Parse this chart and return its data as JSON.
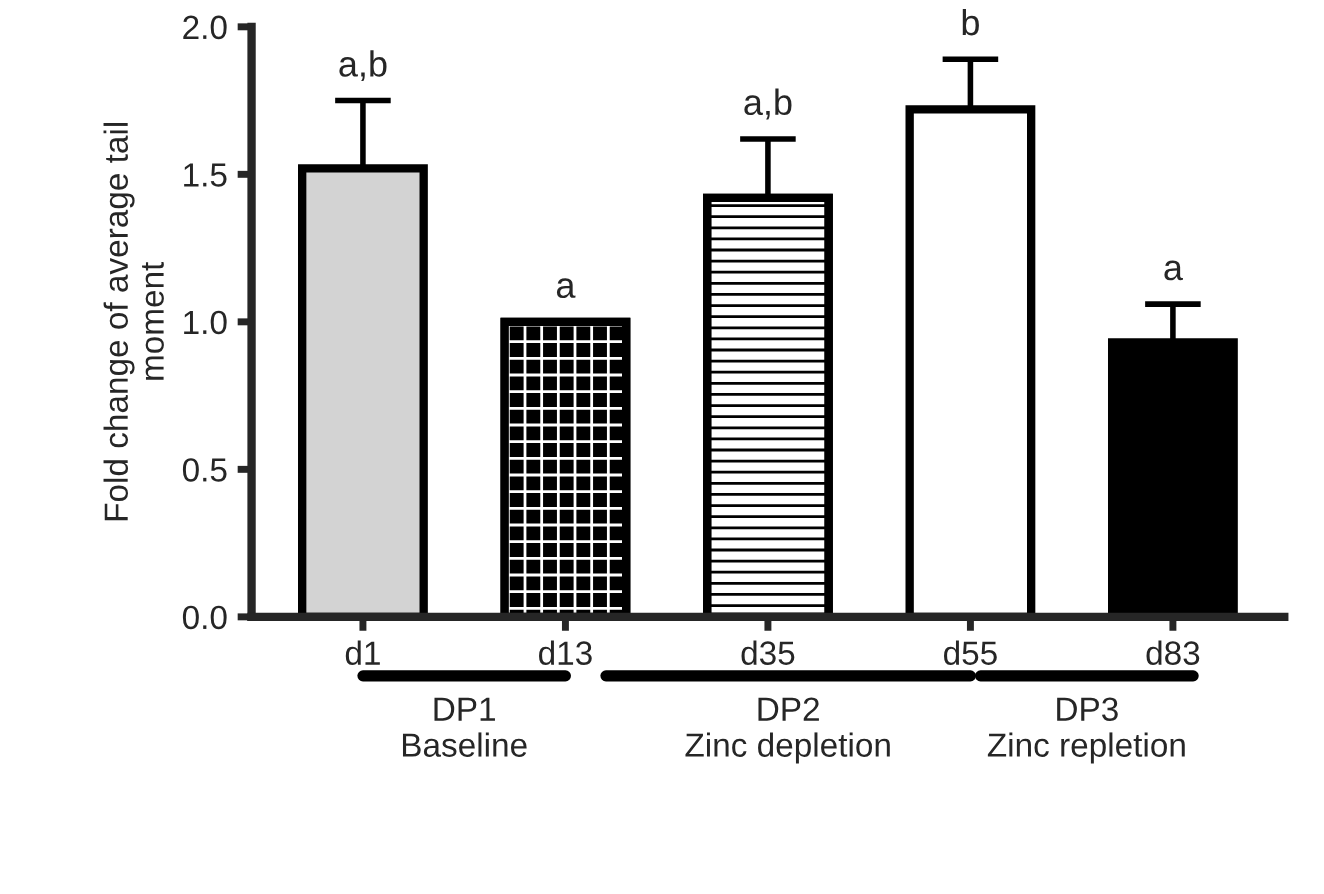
{
  "chart_data": {
    "type": "bar",
    "ylabel": "Fold change of average tail\nmoment",
    "categories": [
      "d1",
      "d13",
      "d35",
      "d55",
      "d83"
    ],
    "values": [
      1.52,
      1.0,
      1.42,
      1.72,
      0.93
    ],
    "errors": [
      [
        1.52,
        1.75
      ],
      null,
      [
        1.42,
        1.62
      ],
      [
        1.72,
        1.89
      ],
      [
        0.93,
        1.06
      ]
    ],
    "colors": [
      "#d3d3d3",
      "#000000",
      "#ffffff",
      "#ffffff",
      "#000000"
    ],
    "ylim": [
      0,
      2.0
    ],
    "yticks": [
      {
        "value": 0,
        "label": "0.0"
      },
      {
        "value": 0.5,
        "label": "0.5"
      },
      {
        "value": 1.0,
        "label": "1.0"
      },
      {
        "value": 1.5,
        "label": "1.5"
      },
      {
        "value": 2.0,
        "label": "2.0"
      }
    ],
    "grid": false,
    "annotations": [
      "a,b",
      "a",
      "a,b",
      "b",
      "a",
      "DP1\nBaseline",
      "DP2\nZinc depletion",
      "DP3\nZinc repletion"
    ]
  }
}
